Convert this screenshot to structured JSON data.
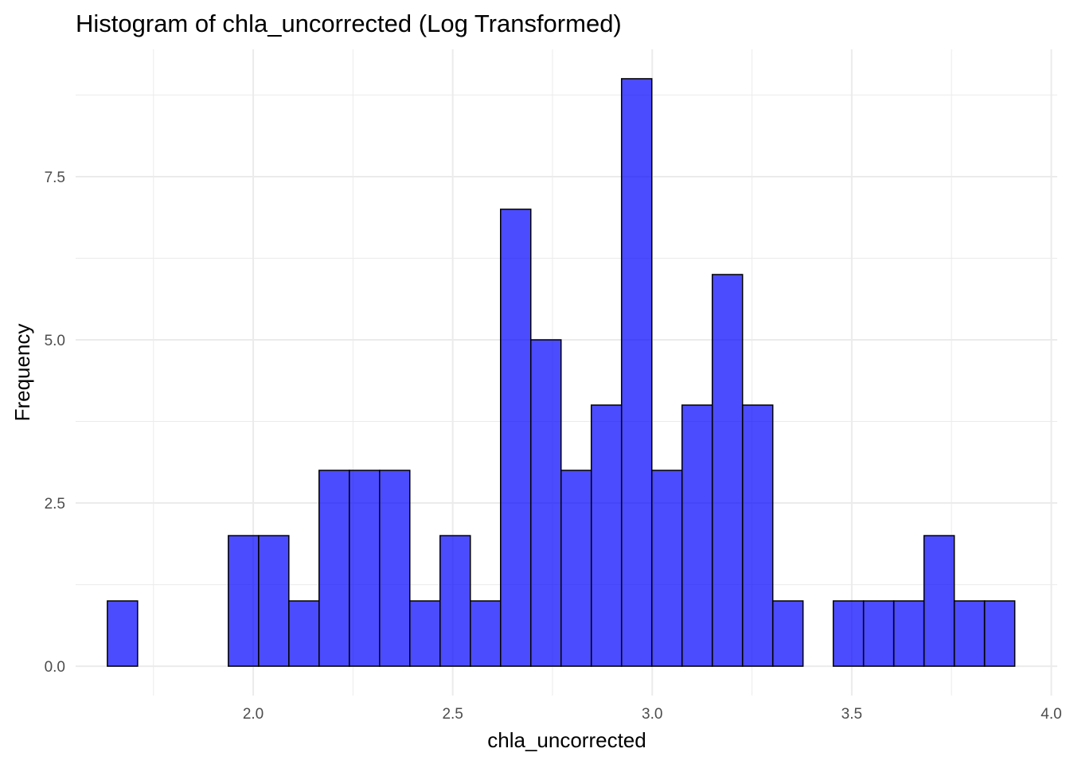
{
  "chart_data": {
    "type": "bar",
    "title": "Histogram of chla_uncorrected (Log Transformed)",
    "xlabel": "chla_uncorrected",
    "ylabel": "Frequency",
    "bin_start": 1.6345,
    "bin_width": 0.0758,
    "values": [
      1,
      0,
      0,
      0,
      2,
      2,
      1,
      3,
      3,
      3,
      1,
      2,
      1,
      7,
      5,
      3,
      4,
      9,
      3,
      4,
      6,
      4,
      1,
      0,
      1,
      1,
      1,
      2,
      1,
      1
    ],
    "xlim": [
      1.555,
      4.015
    ],
    "ylim": [
      -0.45,
      9.45
    ],
    "x_ticks": [
      2.0,
      2.5,
      3.0,
      3.5,
      4.0
    ],
    "x_tick_labels": [
      "2.0",
      "2.5",
      "3.0",
      "3.5",
      "4.0"
    ],
    "y_ticks": [
      0,
      2.5,
      5,
      7.5
    ],
    "y_tick_labels": [
      "0.0",
      "2.5",
      "5.0",
      "7.5"
    ],
    "grid": true,
    "bar_fill": "#0000ff",
    "bar_fill_opacity": 0.7,
    "bar_stroke": "#000000",
    "grid_color": "#ebebeb"
  }
}
